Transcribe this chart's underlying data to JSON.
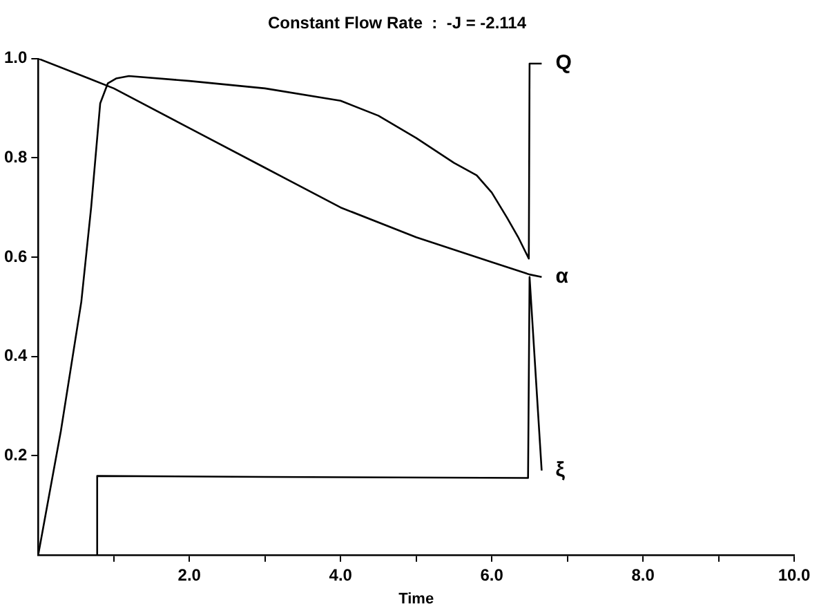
{
  "chart_data": {
    "type": "line",
    "title": "Constant Flow Rate  :  -J = -2.114",
    "xlabel": "Time",
    "xlim": [
      0,
      10
    ],
    "xticks": [
      {
        "value": 1,
        "label": null
      },
      {
        "value": 2,
        "label": "2.0"
      },
      {
        "value": 3,
        "label": null
      },
      {
        "value": 4,
        "label": "4.0"
      },
      {
        "value": 5,
        "label": null
      },
      {
        "value": 6,
        "label": "6.0"
      },
      {
        "value": 7,
        "label": null
      },
      {
        "value": 8,
        "label": "8.0"
      },
      {
        "value": 9,
        "label": null
      },
      {
        "value": 10,
        "label": "10.0"
      }
    ],
    "ylim": [
      0,
      1.0
    ],
    "yticks": [
      0.2,
      0.4,
      0.6,
      0.8,
      {
        "value": 1.0,
        "label": "1.0"
      }
    ],
    "grid": false,
    "marker": "none",
    "line_style": "solid",
    "series": [
      {
        "name": "Q",
        "color": "#000000",
        "x": [
          0,
          0.3,
          0.57,
          0.7,
          0.82,
          0.92,
          1.03,
          1.2,
          2.0,
          3.0,
          4.0,
          4.5,
          5.0,
          5.5,
          5.8,
          6.0,
          6.2,
          6.35,
          6.49,
          6.5,
          6.66
        ],
        "values": [
          0,
          0.25,
          0.51,
          0.7,
          0.91,
          0.95,
          0.96,
          0.965,
          0.955,
          0.94,
          0.915,
          0.885,
          0.84,
          0.79,
          0.765,
          0.73,
          0.68,
          0.64,
          0.597,
          0.99,
          0.99
        ]
      },
      {
        "name": "α",
        "color": "#000000",
        "x": [
          0,
          0.67,
          1.0,
          2.0,
          3.0,
          4.0,
          5.0,
          6.0,
          6.5,
          6.66
        ],
        "values": [
          1.0,
          0.96,
          0.94,
          0.86,
          0.78,
          0.7,
          0.64,
          0.59,
          0.565,
          0.56
        ]
      },
      {
        "name": "ξ",
        "color": "#000000",
        "x": [
          0.78,
          0.78,
          3.0,
          6.48,
          6.5,
          6.66
        ],
        "values": [
          0,
          0.159,
          0.157,
          0.155,
          0.56,
          0.17
        ]
      }
    ]
  }
}
